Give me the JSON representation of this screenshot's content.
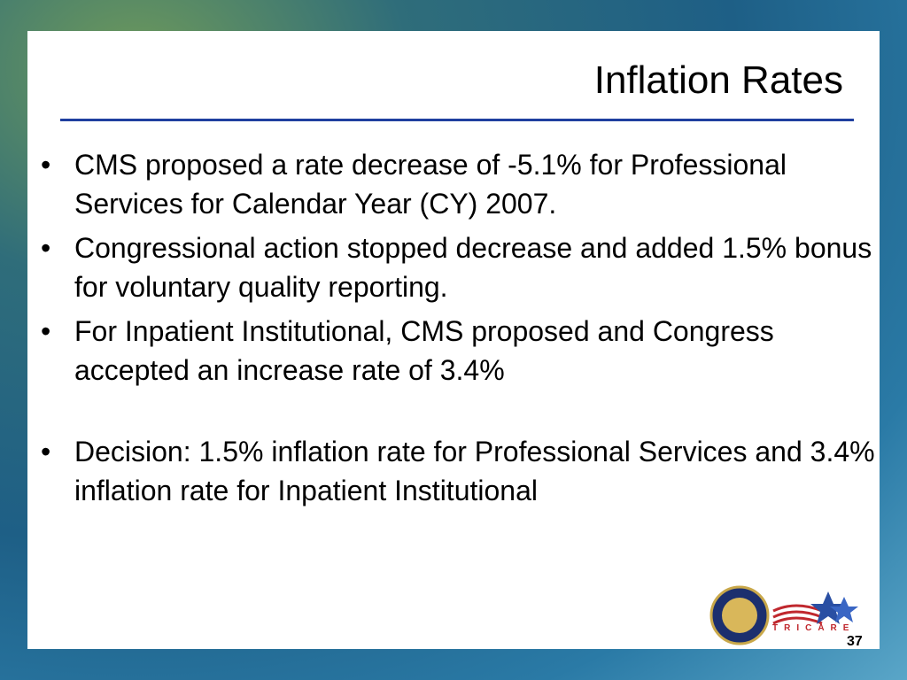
{
  "slide": {
    "title": "Inflation Rates",
    "bullets": [
      "CMS proposed a rate decrease of -5.1% for Professional Services for Calendar Year (CY) 2007.",
      "Congressional action stopped decrease and added 1.5% bonus for voluntary quality reporting.",
      "For Inpatient Institutional, CMS proposed and Congress accepted an increase rate of 3.4%",
      "Decision:  1.5% inflation rate for Professional Services and 3.4% inflation rate for Inpatient Institutional"
    ],
    "logo_text": "TRICARE",
    "page_number": "37"
  }
}
